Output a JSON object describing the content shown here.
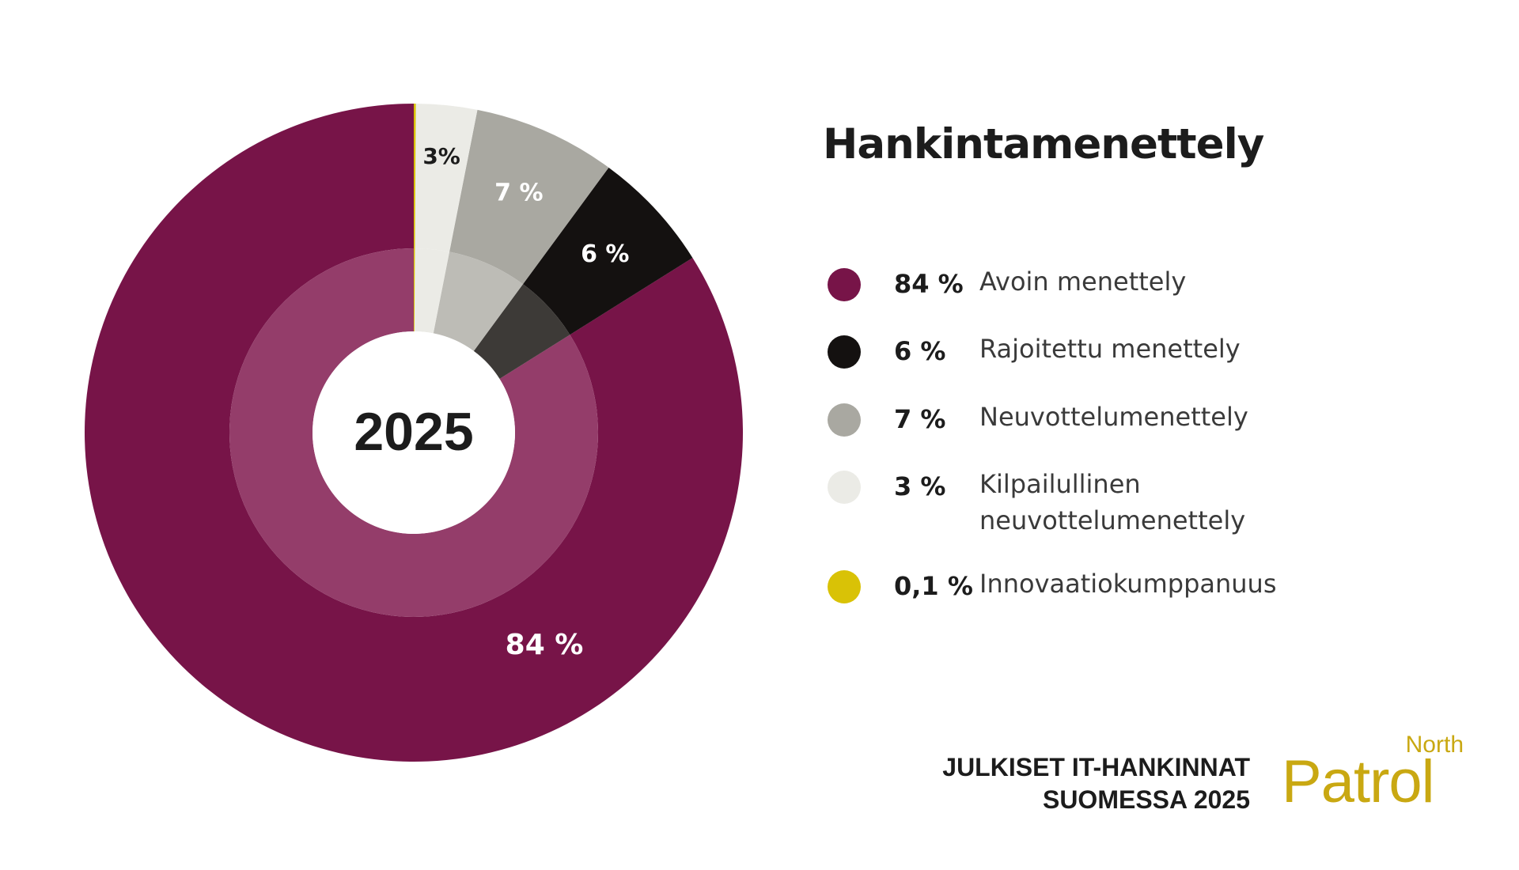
{
  "chart_data": {
    "type": "pie",
    "title": "Hankintamenettely",
    "center_label": "2025",
    "slices": [
      {
        "label": "Avoin menettely",
        "value": 84,
        "value_label": "84 %",
        "color": "#771448",
        "inner_color": "#943d6a"
      },
      {
        "label": "Rajoitettu menettely",
        "value": 6,
        "value_label": "6 %",
        "color": "#141110",
        "inner_color": "#3d3a37"
      },
      {
        "label": "Neuvottelumenettely",
        "value": 7,
        "value_label": "7 %",
        "color": "#a9a8a1",
        "inner_color": "#bdbcb6"
      },
      {
        "label": "Kilpailullinen neuvottelumenettely",
        "value": 3,
        "value_label": "3%",
        "color": "#ebebe6",
        "inner_color": "#ebebe6"
      },
      {
        "label": "Innovaatiokumppanuus",
        "value": 0.1,
        "value_label": "0,1 %",
        "color": "#d9c206",
        "inner_color": "#d9c206"
      }
    ],
    "legend": [
      {
        "value": "84 %",
        "label_lines": [
          "Avoin menettely"
        ]
      },
      {
        "value": "6 %",
        "label_lines": [
          "Rajoitettu menettely"
        ]
      },
      {
        "value": "7 %",
        "label_lines": [
          "Neuvottelumenettely"
        ]
      },
      {
        "value": "3 %",
        "label_lines": [
          "Kilpailullinen",
          "neuvottelumenettely"
        ]
      },
      {
        "value": "0,1 %",
        "label_lines": [
          "Innovaatiokumppanuus"
        ]
      }
    ],
    "legend_position": "right"
  },
  "footer": {
    "line1": "JULKISET IT-HANKINNAT",
    "line2": "SUOMESSA 2025"
  },
  "logo": {
    "top": "North",
    "bottom": "Patrol",
    "color": "#c9a812"
  }
}
